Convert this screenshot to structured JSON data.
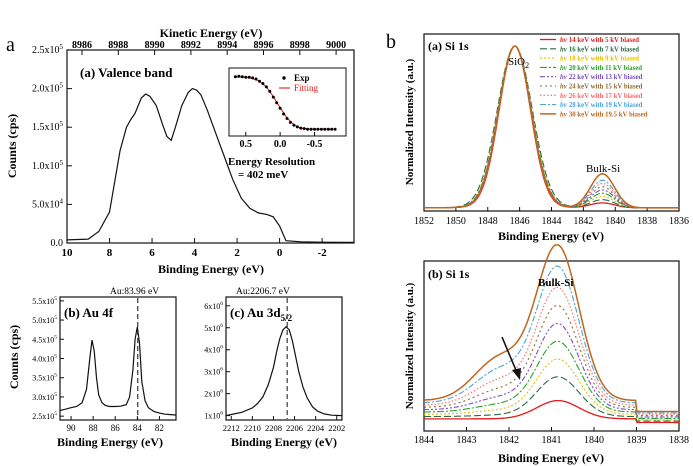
{
  "figure": {
    "panel_a_letter": "a",
    "panel_b_letter": "b",
    "colors": {
      "black": "#111111",
      "fit_red": "#e02020",
      "exp_dot": "#000000",
      "s14": "#e41a1c",
      "s16": "#2a6a45",
      "s18": "#e6c200",
      "s20": "#2ca02c",
      "s22": "#7a4fbf",
      "s24": "#8c6d31",
      "s26": "#ff6666",
      "s28": "#4ea3d8",
      "s30": "#c0651e"
    }
  },
  "chart_data": [
    {
      "id": "valence",
      "type": "line",
      "title": "(a) Valence band",
      "top_axis_label": "Kinetic Energy (eV)",
      "top_ticks": [
        "8986",
        "8988",
        "8990",
        "8992",
        "8994",
        "8996",
        "8998",
        "9000"
      ],
      "xlabel": "Binding Energy (eV)",
      "ylabel": "Counts (cps)",
      "x_ticks": [
        "10",
        "8",
        "6",
        "4",
        "2",
        "0",
        "-2"
      ],
      "y_ticks": [
        "0.0",
        "5.0x10^4",
        "1.0x10^5",
        "1.5x10^5",
        "2.0x10^5",
        "2.5x10^5"
      ],
      "xlim": [
        10,
        -3.5
      ],
      "ylim": [
        0,
        250000
      ],
      "series": [
        {
          "name": "Valence band",
          "x": [
            10,
            9,
            8.5,
            8,
            7.5,
            7.2,
            7,
            6.8,
            6.5,
            6.3,
            6.1,
            5.8,
            5.5,
            5.3,
            5.1,
            4.9,
            4.6,
            4.3,
            4.1,
            3.9,
            3.7,
            3.4,
            3.0,
            2.6,
            2.2,
            1.8,
            1.4,
            1.0,
            0.6,
            0.3,
            0,
            -0.3,
            -1,
            -2,
            -3,
            -3.5
          ],
          "y": [
            4000,
            5000,
            15000,
            40000,
            120000,
            150000,
            160000,
            168000,
            188000,
            193000,
            190000,
            178000,
            153000,
            138000,
            133000,
            150000,
            178000,
            195000,
            200000,
            198000,
            192000,
            172000,
            142000,
            112000,
            82000,
            58000,
            45000,
            39000,
            37000,
            34000,
            22000,
            3000,
            1500,
            1000,
            800,
            800
          ]
        }
      ]
    },
    {
      "id": "inset",
      "type": "scatter",
      "legend": [
        "Exp",
        "Fitting"
      ],
      "x_ticks": [
        "0.5",
        "0.0",
        "-0.5"
      ],
      "xlim": [
        0.7,
        -0.9
      ],
      "ylim": [
        0,
        1.1
      ],
      "caption_line1": "Energy Resolution",
      "caption_line2": "= 402 meV",
      "series": [
        {
          "name": "Exp",
          "x": [
            0.65,
            0.6,
            0.55,
            0.5,
            0.45,
            0.4,
            0.35,
            0.3,
            0.25,
            0.2,
            0.15,
            0.1,
            0.05,
            0.0,
            -0.05,
            -0.1,
            -0.15,
            -0.2,
            -0.25,
            -0.3,
            -0.35,
            -0.4,
            -0.45,
            -0.5,
            -0.55,
            -0.6,
            -0.65,
            -0.7,
            -0.75,
            -0.8
          ],
          "y": [
            0.98,
            0.99,
            0.98,
            0.97,
            0.97,
            0.96,
            0.94,
            0.9,
            0.86,
            0.8,
            0.72,
            0.62,
            0.52,
            0.42,
            0.32,
            0.24,
            0.17,
            0.12,
            0.09,
            0.07,
            0.06,
            0.05,
            0.05,
            0.05,
            0.05,
            0.05,
            0.05,
            0.05,
            0.05,
            0.05
          ]
        },
        {
          "name": "Fitting",
          "x": [
            0.65,
            0.5,
            0.4,
            0.3,
            0.2,
            0.1,
            0.0,
            -0.1,
            -0.2,
            -0.3,
            -0.4,
            -0.5,
            -0.6,
            -0.8
          ],
          "y": [
            0.98,
            0.97,
            0.95,
            0.9,
            0.8,
            0.63,
            0.43,
            0.25,
            0.13,
            0.07,
            0.055,
            0.05,
            0.05,
            0.05
          ]
        }
      ]
    },
    {
      "id": "au4f",
      "type": "line",
      "title": "(b) Au 4f",
      "marker_label": "Au:83.96 eV",
      "marker_x": 83.96,
      "xlabel": "Binding Energy (eV)",
      "ylabel": "Counts (cps)",
      "x_ticks": [
        "90",
        "88",
        "86",
        "84",
        "82"
      ],
      "y_ticks": [
        "2.5x10^5",
        "3.0x10^5",
        "3.5x10^5",
        "4.0x10^5",
        "4.5x10^5",
        "5.0x10^5",
        "5.5x10^5"
      ],
      "xlim": [
        91,
        80.5
      ],
      "ylim": [
        240000,
        560000
      ],
      "series": [
        {
          "name": "Au 4f",
          "x": [
            91,
            90.5,
            90,
            89.5,
            89,
            88.6,
            88.3,
            88.1,
            87.9,
            87.7,
            87.5,
            87.2,
            86.9,
            86.5,
            86,
            85.5,
            85,
            84.7,
            84.4,
            84.2,
            84.0,
            83.8,
            83.6,
            83.3,
            83.0,
            82.5,
            82,
            81.5,
            81,
            80.5
          ],
          "y": [
            265000,
            268000,
            272000,
            275000,
            285000,
            320000,
            400000,
            448000,
            420000,
            350000,
            305000,
            285000,
            278000,
            275000,
            275000,
            276000,
            280000,
            300000,
            370000,
            450000,
            482000,
            440000,
            340000,
            290000,
            272000,
            262000,
            258000,
            255000,
            254000,
            253000
          ]
        }
      ]
    },
    {
      "id": "au3d",
      "type": "line",
      "title": "(c) Au 3d",
      "title_sub": "5/2",
      "marker_label": "Au:2206.7 eV",
      "marker_x": 2206.7,
      "xlabel": "Binding Energy (eV)",
      "x_ticks": [
        "2212",
        "2210",
        "2208",
        "2206",
        "2204",
        "2202"
      ],
      "y_ticks": [
        "1x10^6",
        "2x10^6",
        "3x10^6",
        "4x10^6",
        "5x10^6",
        "6x10^6"
      ],
      "xlim": [
        2212.5,
        2201.5
      ],
      "ylim": [
        800000,
        6400000
      ],
      "series": [
        {
          "name": "Au 3d5/2",
          "x": [
            2212.5,
            2212,
            2211,
            2210,
            2209.5,
            2209,
            2208.5,
            2208,
            2207.7,
            2207.4,
            2207.1,
            2206.8,
            2206.5,
            2206.2,
            2205.9,
            2205.6,
            2205.2,
            2204.8,
            2204.3,
            2203.8,
            2203.2,
            2202.5,
            2201.5
          ],
          "y": [
            1000000,
            1050000,
            1150000,
            1350000,
            1550000,
            1850000,
            2400000,
            3200000,
            3900000,
            4500000,
            4900000,
            5050000,
            4900000,
            4400000,
            3700000,
            3000000,
            2300000,
            1800000,
            1400000,
            1200000,
            1080000,
            1020000,
            1000000
          ]
        }
      ]
    },
    {
      "id": "si1s_top",
      "type": "line",
      "title": "(a) Si 1s",
      "peak1_label": "SiO",
      "peak1_sub": "2",
      "peak2_label": "Bulk-Si",
      "xlabel": "Binding Energy (eV)",
      "ylabel": "Normalized Intensity (a.u.)",
      "x_ticks": [
        "1852",
        "1850",
        "1848",
        "1846",
        "1844",
        "1842",
        "1840",
        "1838",
        "1836"
      ],
      "xlim": [
        1852,
        1836
      ],
      "ylim": [
        0,
        1.05
      ],
      "legend_prefix": "hv",
      "series": [
        {
          "name": "14 keV with 5 kV biased",
          "style": "s14",
          "w1": 0.98,
          "bulk": 0.03,
          "w2": 1.02
        },
        {
          "name": "16 keV with 7 kV biased",
          "style": "s16",
          "w1": 1.1,
          "bulk": 0.05,
          "w2": 1.0
        },
        {
          "name": "18 keV with 9 kV biased",
          "style": "s18",
          "w1": 1.06,
          "bulk": 0.07,
          "w2": 1.0
        },
        {
          "name": "20 keV with 11 kV biased",
          "style": "s20",
          "w1": 1.04,
          "bulk": 0.09,
          "w2": 1.0
        },
        {
          "name": "22 keV with 13 kV biased",
          "style": "s22",
          "w1": 1.03,
          "bulk": 0.11,
          "w2": 1.0
        },
        {
          "name": "24 keV with 15 kV biased",
          "style": "s24",
          "w1": 1.02,
          "bulk": 0.13,
          "w2": 1.0
        },
        {
          "name": "26 keV with 17 kV biased",
          "style": "s26",
          "w1": 1.01,
          "bulk": 0.15,
          "w2": 1.0
        },
        {
          "name": "28 keV with 19 kV biased",
          "style": "s28",
          "w1": 1.0,
          "bulk": 0.17,
          "w2": 1.0
        },
        {
          "name": "30 keV with 19.5 kV biased",
          "style": "s30",
          "w1": 1.0,
          "bulk": 0.21,
          "w2": 1.0
        }
      ]
    },
    {
      "id": "si1s_bottom",
      "type": "line",
      "title": "(b) Si 1s",
      "peak_label": "Bulk-Si",
      "xlabel": "Binding Energy (eV)",
      "ylabel": "Normalized Intensity (a.u.)",
      "x_ticks": [
        "1844",
        "1843",
        "1842",
        "1841",
        "1840",
        "1839",
        "1838"
      ],
      "xlim": [
        1844,
        1838
      ],
      "ylim": [
        0,
        1.05
      ],
      "amplitudes": [
        0.12,
        0.26,
        0.36,
        0.46,
        0.56,
        0.66,
        0.76,
        0.88,
        1.0
      ]
    }
  ]
}
